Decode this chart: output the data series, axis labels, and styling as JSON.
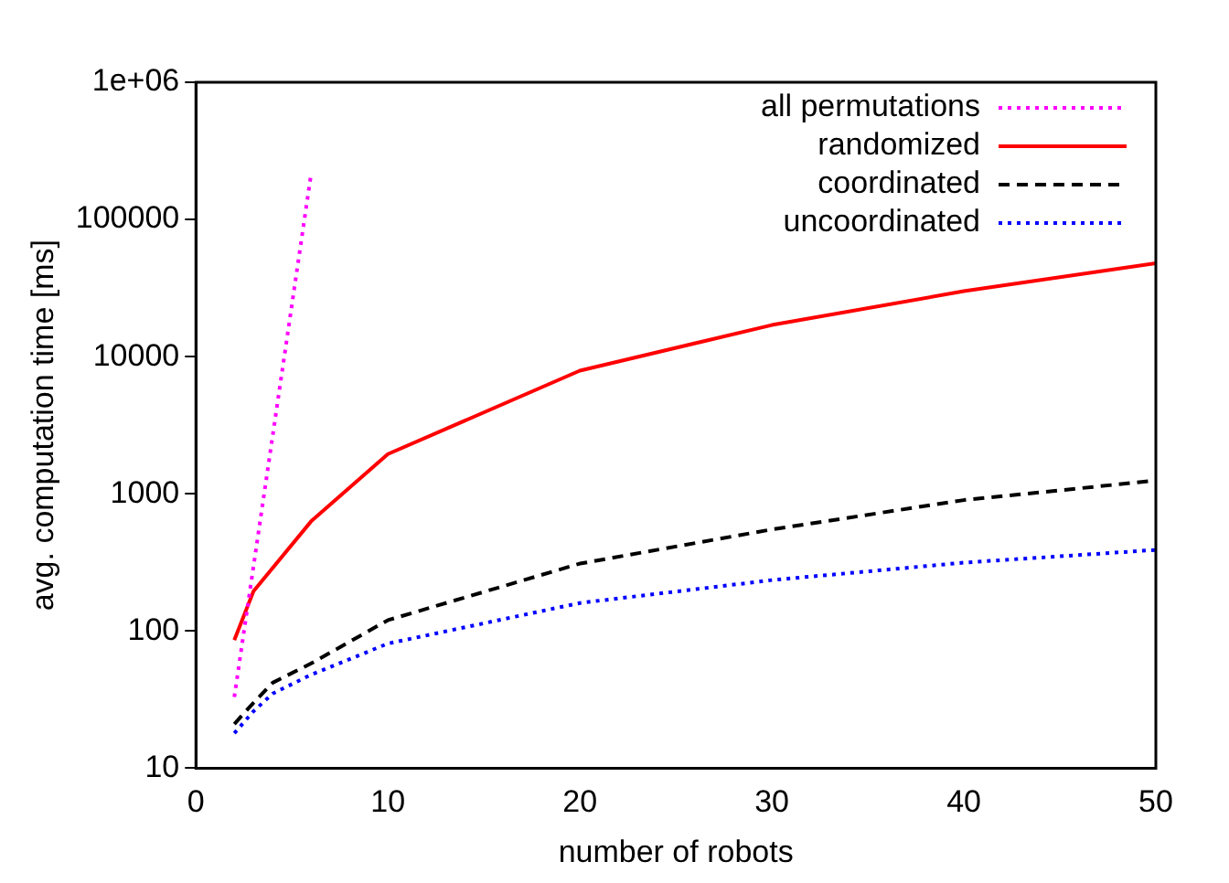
{
  "chart_data": {
    "type": "line",
    "xlabel": "number of robots",
    "ylabel": "avg. computation time [ms]",
    "xlim": [
      0,
      50
    ],
    "xticks": [
      0,
      10,
      20,
      30,
      40,
      50
    ],
    "ylim": [
      10,
      1000000
    ],
    "yticks": [
      10,
      100,
      1000,
      10000,
      100000,
      {
        "value": 1000000,
        "label": "1e+06"
      }
    ],
    "log": "y",
    "legend": "top right",
    "grid": false,
    "marker": "none",
    "series": [
      {
        "name": "all permutations",
        "color": "#ff00ff",
        "line_style": "dotted",
        "x": [
          2,
          6
        ],
        "values": [
          33,
          215000
        ]
      },
      {
        "name": "randomized",
        "color": "#ff0000",
        "line_style": "solid",
        "x": [
          2,
          3,
          6,
          10,
          20,
          30,
          40,
          50
        ],
        "values": [
          86,
          195,
          630,
          1950,
          7900,
          17000,
          30000,
          48000
        ]
      },
      {
        "name": "coordinated",
        "color": "#000000",
        "line_style": "dashed",
        "x": [
          2,
          3,
          4,
          6,
          10,
          20,
          30,
          40,
          50
        ],
        "values": [
          21,
          30,
          42,
          58,
          120,
          310,
          550,
          900,
          1250
        ]
      },
      {
        "name": "uncoordinated",
        "color": "#0000ff",
        "line_style": "dotted",
        "x": [
          2,
          3,
          4,
          6,
          10,
          20,
          30,
          40,
          50
        ],
        "values": [
          18,
          26,
          35,
          48,
          81,
          160,
          235,
          315,
          390
        ]
      }
    ]
  }
}
